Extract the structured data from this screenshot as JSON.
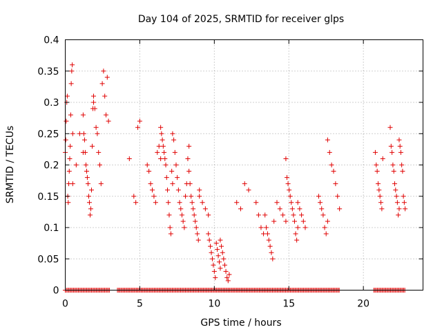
{
  "chart_data": {
    "type": "scatter",
    "title": "Day 104 of 2025, SRMTID for receiver glps",
    "xlabel": "GPS time / hours",
    "ylabel": "SRMTID / TECUs",
    "xlim": [
      0,
      24
    ],
    "ylim": [
      0,
      0.4
    ],
    "xticks": [
      0,
      5,
      10,
      15,
      20
    ],
    "xtick_labels": [
      "0",
      "5",
      "10",
      "15",
      "20"
    ],
    "yticks": [
      0,
      0.05,
      0.1,
      0.15,
      0.2,
      0.25,
      0.3,
      0.35,
      0.4
    ],
    "ytick_labels": [
      "0",
      "0.05",
      "0.1",
      "0.15",
      "0.2",
      "0.25",
      "0.3",
      "0.35",
      "0.4"
    ],
    "grid": true,
    "marker": "plus",
    "color": "#e00000",
    "series": [
      {
        "name": "SRMTID",
        "clusters": [
          {
            "x0": 0.0,
            "x1": 0.5,
            "ys": [
              0.22,
              0.24,
              0.27,
              0.3,
              0.31,
              0.15,
              0.14,
              0.17,
              0.19,
              0.21,
              0.23,
              0.28,
              0.33,
              0.35,
              0.36,
              0.25
            ]
          },
          {
            "x0": 0.5,
            "x1": 1.2,
            "ys": [
              0.17,
              0.2,
              0.25,
              0.22
            ]
          },
          {
            "x0": 1.2,
            "x1": 1.9,
            "ys": [
              0.28,
              0.25,
              0.24,
              0.22,
              0.2,
              0.19,
              0.18,
              0.17,
              0.15,
              0.14,
              0.12,
              0.13,
              0.16,
              0.23,
              0.29,
              0.31
            ]
          },
          {
            "x0": 1.9,
            "x1": 2.9,
            "ys": [
              0.3,
              0.29,
              0.26,
              0.25,
              0.22,
              0.2,
              0.17,
              0.33,
              0.35,
              0.31,
              0.28,
              0.34,
              0.27
            ]
          },
          {
            "x0": 4.2,
            "x1": 4.4,
            "ys": [
              0.21
            ]
          },
          {
            "x0": 4.6,
            "x1": 5.0,
            "ys": [
              0.15,
              0.14,
              0.26,
              0.27
            ]
          },
          {
            "x0": 5.5,
            "x1": 6.4,
            "ys": [
              0.2,
              0.19,
              0.17,
              0.16,
              0.15,
              0.14,
              0.22,
              0.23,
              0.21
            ]
          },
          {
            "x0": 6.4,
            "x1": 7.2,
            "ys": [
              0.26,
              0.25,
              0.24,
              0.23,
              0.22,
              0.21,
              0.2,
              0.18,
              0.16,
              0.14,
              0.12,
              0.1,
              0.09,
              0.19,
              0.17
            ]
          },
          {
            "x0": 7.2,
            "x1": 8.3,
            "ys": [
              0.25,
              0.24,
              0.22,
              0.2,
              0.18,
              0.16,
              0.14,
              0.13,
              0.12,
              0.11,
              0.1,
              0.15,
              0.17,
              0.21,
              0.23
            ]
          },
          {
            "x0": 8.3,
            "x1": 9.0,
            "ys": [
              0.19,
              0.17,
              0.15,
              0.14,
              0.13,
              0.12,
              0.11,
              0.1,
              0.09,
              0.08,
              0.16
            ]
          },
          {
            "x0": 9.0,
            "x1": 9.6,
            "ys": [
              0.15,
              0.14,
              0.13,
              0.12
            ]
          },
          {
            "x0": 9.6,
            "x1": 10.4,
            "ys": [
              0.09,
              0.08,
              0.07,
              0.06,
              0.05,
              0.04,
              0.03,
              0.02,
              0.075,
              0.065,
              0.055,
              0.045,
              0.035
            ]
          },
          {
            "x0": 10.4,
            "x1": 11.0,
            "ys": [
              0.08,
              0.07,
              0.06,
              0.05,
              0.04,
              0.03,
              0.02,
              0.015,
              0.025
            ]
          },
          {
            "x0": 11.5,
            "x1": 12.3,
            "ys": [
              0.14,
              0.13,
              0.17,
              0.16
            ]
          },
          {
            "x0": 12.8,
            "x1": 13.3,
            "ys": [
              0.14,
              0.12,
              0.1,
              0.09
            ]
          },
          {
            "x0": 13.4,
            "x1": 14.0,
            "ys": [
              0.12,
              0.1,
              0.09,
              0.08,
              0.07,
              0.06,
              0.05,
              0.11
            ]
          },
          {
            "x0": 14.2,
            "x1": 14.8,
            "ys": [
              0.14,
              0.13,
              0.12,
              0.11
            ]
          },
          {
            "x0": 14.8,
            "x1": 15.6,
            "ys": [
              0.21,
              0.18,
              0.17,
              0.16,
              0.15,
              0.14,
              0.13,
              0.12,
              0.11,
              0.09,
              0.08,
              0.1
            ]
          },
          {
            "x0": 15.6,
            "x1": 16.1,
            "ys": [
              0.14,
              0.13,
              0.12,
              0.11,
              0.1
            ]
          },
          {
            "x0": 17.0,
            "x1": 17.6,
            "ys": [
              0.15,
              0.14,
              0.13,
              0.12,
              0.1,
              0.09,
              0.11
            ]
          },
          {
            "x0": 17.6,
            "x1": 18.4,
            "ys": [
              0.24,
              0.22,
              0.2,
              0.19,
              0.17,
              0.15,
              0.13
            ]
          },
          {
            "x0": 20.8,
            "x1": 21.3,
            "ys": [
              0.22,
              0.2,
              0.19,
              0.17,
              0.16,
              0.15,
              0.14,
              0.13,
              0.21
            ]
          },
          {
            "x0": 21.8,
            "x1": 22.4,
            "ys": [
              0.26,
              0.23,
              0.22,
              0.2,
              0.19,
              0.17,
              0.16,
              0.15,
              0.14,
              0.12,
              0.13
            ]
          },
          {
            "x0": 22.4,
            "x1": 22.8,
            "ys": [
              0.24,
              0.23,
              0.22,
              0.2,
              0.19,
              0.15,
              0.14,
              0.13
            ]
          }
        ],
        "zero_runs": [
          [
            0.0,
            3.0
          ],
          [
            3.5,
            18.4
          ],
          [
            20.7,
            22.8
          ]
        ]
      }
    ]
  }
}
